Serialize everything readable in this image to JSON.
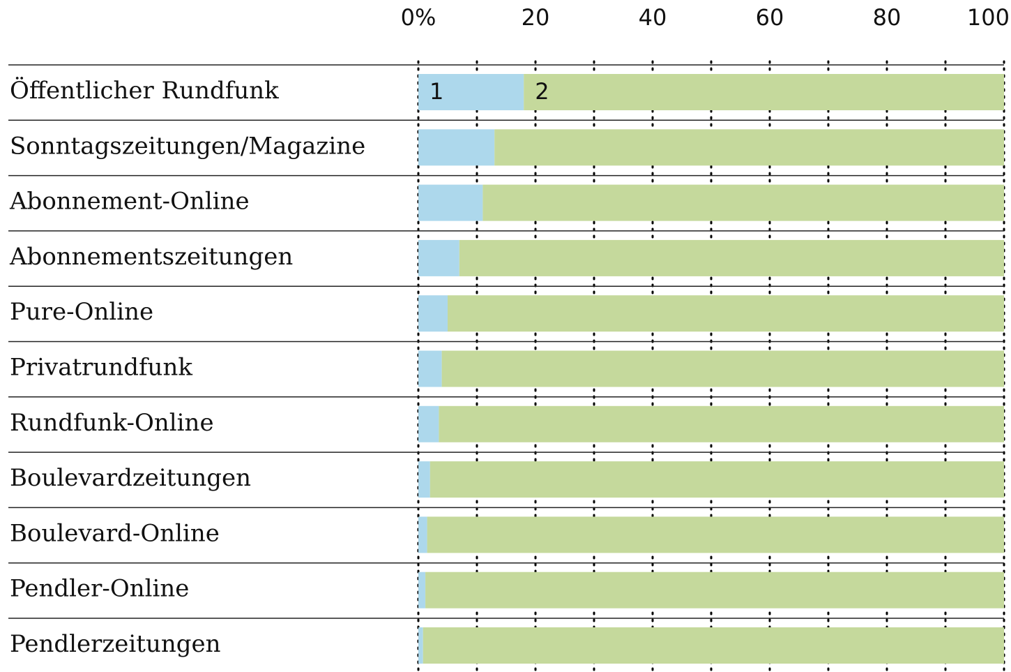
{
  "chart_data": {
    "type": "stacked-bar-horizontal",
    "categories": [
      "Öffentlicher Rundfunk",
      "Sonntagszeitungen/Magazine",
      "Abonnement-Online",
      "Abonnementszeitungen",
      "Pure-Online",
      "Privatrundfunk",
      "Rundfunk-Online",
      "Boulevardzeitungen",
      "Boulevard-Online",
      "Pendler-Online",
      "Pendlerzeitungen"
    ],
    "series": [
      {
        "name": "1",
        "color": "#add8ec",
        "values": [
          18,
          13,
          11,
          7,
          5,
          4,
          3.5,
          2,
          1.5,
          1.2,
          0.8
        ]
      },
      {
        "name": "2",
        "color": "#c5d99c",
        "values": [
          82,
          87,
          89,
          93,
          95,
          96,
          96.5,
          98,
          98.5,
          98.8,
          99.2
        ]
      }
    ],
    "xlim": [
      0,
      100
    ],
    "xticks": [
      {
        "value": 0,
        "label": "0%"
      },
      20,
      40,
      60,
      80,
      100
    ],
    "grid_xticks": [
      0,
      10,
      20,
      30,
      40,
      50,
      60,
      70,
      80,
      90,
      100
    ],
    "grid": true
  }
}
